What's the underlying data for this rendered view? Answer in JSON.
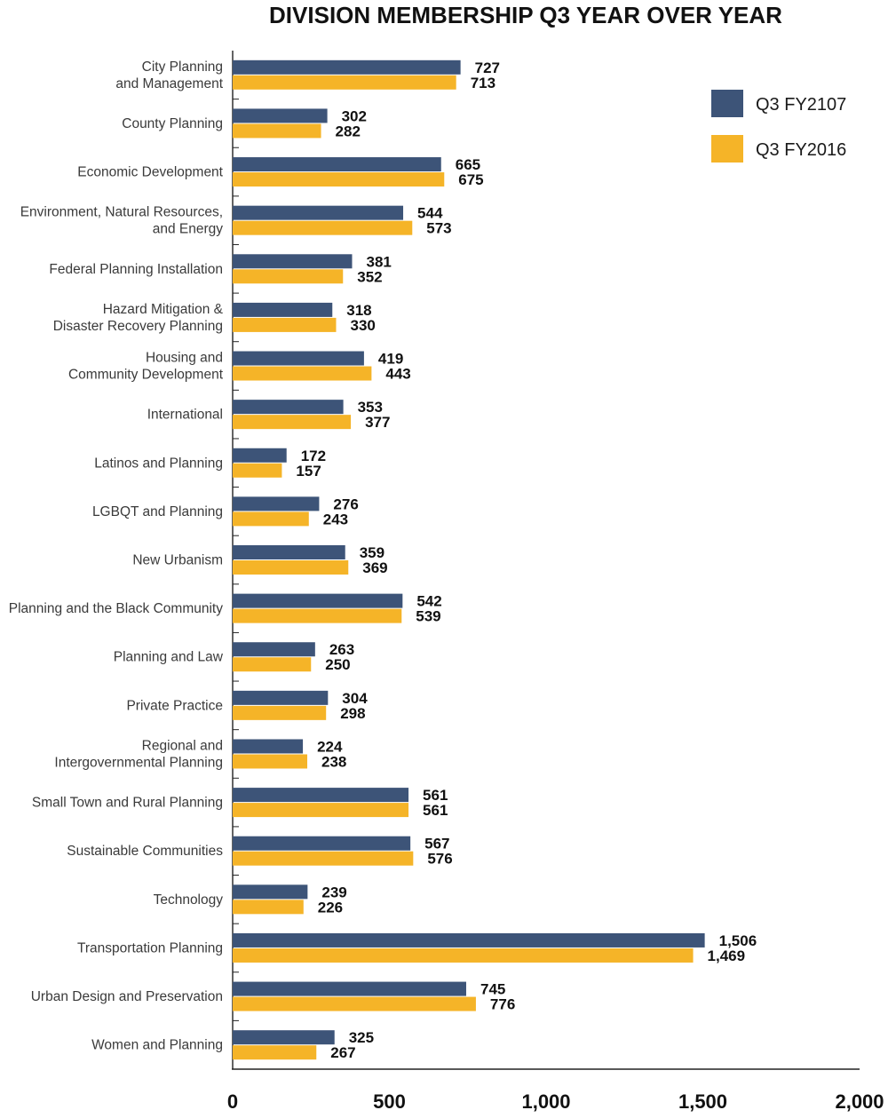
{
  "chart_data": {
    "type": "bar",
    "orientation": "horizontal",
    "title": "DIVISION MEMBERSHIP Q3 YEAR OVER YEAR",
    "xlabel": "",
    "ylabel": "",
    "xlim": [
      0,
      2000
    ],
    "x_ticks": [
      0,
      500,
      1000,
      1500,
      2000
    ],
    "x_tick_labels": [
      "0",
      "500",
      "1,000",
      "1,500",
      "2,000"
    ],
    "grid": false,
    "legend_position": "top-right",
    "categories": [
      [
        "City Planning",
        "and Management"
      ],
      [
        "County Planning"
      ],
      [
        "Economic Development"
      ],
      [
        "Environment, Natural Resources,",
        "and Energy"
      ],
      [
        "Federal Planning Installation"
      ],
      [
        "Hazard Mitigation &",
        "Disaster Recovery Planning"
      ],
      [
        "Housing and",
        "Community Development"
      ],
      [
        "International"
      ],
      [
        "Latinos and Planning"
      ],
      [
        "LGBQT and Planning"
      ],
      [
        "New Urbanism"
      ],
      [
        "Planning and the Black Community"
      ],
      [
        "Planning and Law"
      ],
      [
        "Private Practice"
      ],
      [
        "Regional and",
        "Intergovernmental Planning"
      ],
      [
        "Small Town and Rural Planning"
      ],
      [
        "Sustainable Communities"
      ],
      [
        "Technology"
      ],
      [
        "Transportation Planning"
      ],
      [
        "Urban Design and Preservation"
      ],
      [
        "Women and Planning"
      ]
    ],
    "series": [
      {
        "name": "Q3 FY2107",
        "color": "#3d5478",
        "values": [
          727,
          302,
          665,
          544,
          381,
          318,
          419,
          353,
          172,
          276,
          359,
          542,
          263,
          304,
          224,
          561,
          567,
          239,
          1506,
          745,
          325
        ],
        "labels": [
          "727",
          "302",
          "665",
          "544",
          "381",
          "318",
          "419",
          "353",
          "172",
          "276",
          "359",
          "542",
          "263",
          "304",
          "224",
          "561",
          "567",
          "239",
          "1,506",
          "745",
          "325"
        ]
      },
      {
        "name": "Q3 FY2016",
        "color": "#f5b428",
        "values": [
          713,
          282,
          675,
          573,
          352,
          330,
          443,
          377,
          157,
          243,
          369,
          539,
          250,
          298,
          238,
          561,
          576,
          226,
          1469,
          776,
          267
        ],
        "labels": [
          "713",
          "282",
          "675",
          "573",
          "352",
          "330",
          "443",
          "377",
          "157",
          "243",
          "369",
          "539",
          "250",
          "298",
          "238",
          "561",
          "576",
          "226",
          "1,469",
          "776",
          "267"
        ]
      }
    ]
  }
}
